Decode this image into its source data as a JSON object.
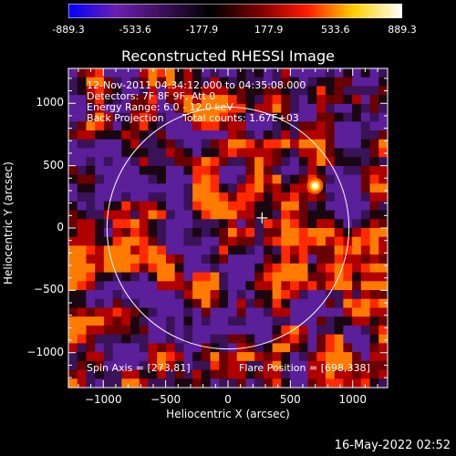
{
  "colorbar": {
    "colors": [
      "#0000ff",
      "#6a1fb0",
      "#3b0f55",
      "#000000",
      "#7a0000",
      "#ff1a00",
      "#ffd000",
      "#ffffff"
    ],
    "ticks": [
      "-889.3",
      "-533.6",
      "-177.9",
      "177.9",
      "533.6",
      "889.3"
    ]
  },
  "chart_data": {
    "type": "heatmap",
    "title": "Reconstructed RHESSI Image",
    "xlabel": "Heliocentric X (arcsec)",
    "ylabel": "Heliocentric Y (arcsec)",
    "xlim": [
      -1280,
      1280
    ],
    "ylim": [
      -1280,
      1280
    ],
    "x_ticks": [
      -1000,
      -500,
      0,
      500,
      1000
    ],
    "y_ticks": [
      -1000,
      -500,
      0,
      500,
      1000
    ],
    "x_tick_labels": [
      "−1000",
      "−500",
      "0",
      "500",
      "1000"
    ],
    "y_tick_labels": [
      "−1000",
      "−500",
      "0",
      "500",
      "1000"
    ],
    "value_range": [
      -889.3,
      889.3
    ],
    "solar_disk": {
      "center": [
        0,
        0
      ],
      "radius": 970
    },
    "flare_position": [
      698,
      338
    ],
    "spin_axis": [
      273,
      81
    ]
  },
  "annotations": {
    "time_range": "12-Nov-2011 04:34:12.000 to 04:35:08.000",
    "detectors": "Detectors: 7F 8F 9F, Att 0",
    "energy": "Energy Range: 6.0 - 12.0 keV",
    "method": "Back Projection",
    "counts": "Total counts: 1.67E+03",
    "spin_axis": "Spin Axis = [273,81]",
    "flare_position": "Flare Position = [698,338]"
  },
  "timestamp": "16-May-2022 02:52"
}
